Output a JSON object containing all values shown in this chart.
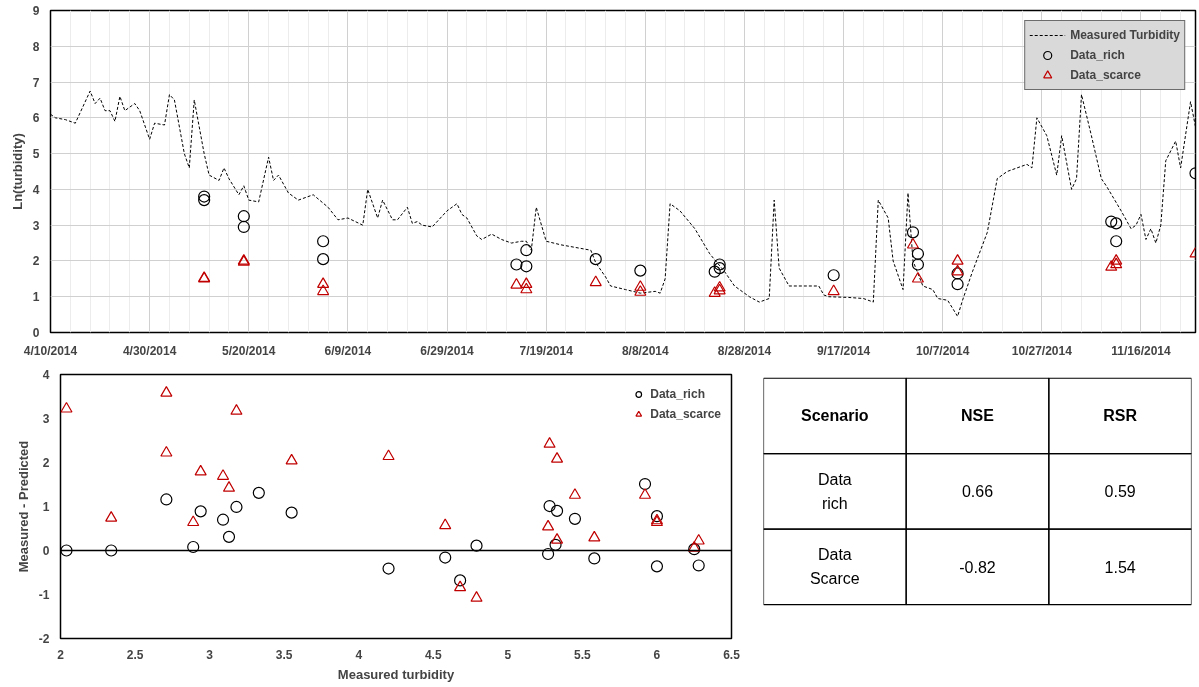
{
  "chart_data": [
    {
      "type": "line",
      "ylabel": "Ln(turbidity)",
      "xlim": [
        "2014-04-10",
        "2014-11-27"
      ],
      "xticks": [
        {
          "value": "2014-04-10",
          "label": "4/10/2014"
        },
        {
          "value": "2014-04-30",
          "label": "4/30/2014"
        },
        {
          "value": "2014-05-20",
          "label": "5/20/2014"
        },
        {
          "value": "2014-06-09",
          "label": "6/9/2014"
        },
        {
          "value": "2014-06-29",
          "label": "6/29/2014"
        },
        {
          "value": "2014-07-19",
          "label": "7/19/2014"
        },
        {
          "value": "2014-08-08",
          "label": "8/8/2014"
        },
        {
          "value": "2014-08-28",
          "label": "8/28/2014"
        },
        {
          "value": "2014-09-17",
          "label": "9/17/2014"
        },
        {
          "value": "2014-10-07",
          "label": "10/7/2014"
        },
        {
          "value": "2014-10-27",
          "label": "10/27/2014"
        },
        {
          "value": "2014-11-16",
          "label": "11/16/2014"
        }
      ],
      "ylim": [
        0,
        9
      ],
      "yticks": [
        0,
        1,
        2,
        3,
        4,
        5,
        6,
        7,
        8,
        9
      ],
      "grid": true,
      "legend": "top right",
      "series": [
        {
          "name": "Measured Turbidity",
          "type": "line",
          "line_style": "dashed",
          "color": "#000000",
          "x": [
            "2014-04-10",
            "2014-04-11",
            "2014-04-13",
            "2014-04-15",
            "2014-04-18",
            "2014-04-19",
            "2014-04-20",
            "2014-04-21",
            "2014-04-22",
            "2014-04-23",
            "2014-04-24",
            "2014-04-25",
            "2014-04-27",
            "2014-04-28",
            "2014-04-30",
            "2014-05-01",
            "2014-05-03",
            "2014-05-04",
            "2014-05-05",
            "2014-05-07",
            "2014-05-08",
            "2014-05-09",
            "2014-05-11",
            "2014-05-12",
            "2014-05-14",
            "2014-05-15",
            "2014-05-16",
            "2014-05-18",
            "2014-05-19",
            "2014-05-20",
            "2014-05-22",
            "2014-05-24",
            "2014-05-25",
            "2014-05-26",
            "2014-05-28",
            "2014-05-30",
            "2014-06-02",
            "2014-06-05",
            "2014-06-07",
            "2014-06-09",
            "2014-06-12",
            "2014-06-13",
            "2014-06-15",
            "2014-06-16",
            "2014-06-18",
            "2014-06-19",
            "2014-06-21",
            "2014-06-22",
            "2014-06-23",
            "2014-06-24",
            "2014-06-26",
            "2014-06-29",
            "2014-07-01",
            "2014-07-02",
            "2014-07-03",
            "2014-07-05",
            "2014-07-06",
            "2014-07-08",
            "2014-07-10",
            "2014-07-12",
            "2014-07-14",
            "2014-07-15",
            "2014-07-16",
            "2014-07-17",
            "2014-07-19",
            "2014-07-22",
            "2014-07-26",
            "2014-07-28",
            "2014-07-29",
            "2014-07-31",
            "2014-08-01",
            "2014-08-04",
            "2014-08-07",
            "2014-08-10",
            "2014-08-11",
            "2014-08-12",
            "2014-08-13",
            "2014-08-15",
            "2014-08-18",
            "2014-08-21",
            "2014-08-24",
            "2014-08-26",
            "2014-08-29",
            "2014-08-31",
            "2014-09-02",
            "2014-09-03",
            "2014-09-04",
            "2014-09-06",
            "2014-09-09",
            "2014-09-12",
            "2014-09-13",
            "2014-09-14",
            "2014-09-18",
            "2014-09-21",
            "2014-09-23",
            "2014-09-24",
            "2014-09-26",
            "2014-09-27",
            "2014-09-29",
            "2014-09-30",
            "2014-10-01",
            "2014-10-03",
            "2014-10-05",
            "2014-10-06",
            "2014-10-08",
            "2014-10-10",
            "2014-10-11",
            "2014-10-13",
            "2014-10-16",
            "2014-10-18",
            "2014-10-20",
            "2014-10-24",
            "2014-10-25",
            "2014-10-26",
            "2014-10-28",
            "2014-10-30",
            "2014-10-31",
            "2014-11-02",
            "2014-11-03",
            "2014-11-04",
            "2014-11-06",
            "2014-11-08",
            "2014-11-09",
            "2014-11-12",
            "2014-11-14",
            "2014-11-15",
            "2014-11-16",
            "2014-11-17",
            "2014-11-18",
            "2014-11-19",
            "2014-11-20",
            "2014-11-21",
            "2014-11-23",
            "2014-11-24",
            "2014-11-26",
            "2014-11-27"
          ],
          "values": [
            6.1,
            6.0,
            5.95,
            5.85,
            6.75,
            6.4,
            6.55,
            6.2,
            6.2,
            5.9,
            6.6,
            6.2,
            6.4,
            6.2,
            5.4,
            5.85,
            5.8,
            6.65,
            6.5,
            5.0,
            4.6,
            6.5,
            5.0,
            4.4,
            4.25,
            4.6,
            4.3,
            3.85,
            4.1,
            3.7,
            3.65,
            4.9,
            4.25,
            4.4,
            3.9,
            3.7,
            3.85,
            3.5,
            3.15,
            3.2,
            3.0,
            4.0,
            3.2,
            3.7,
            3.15,
            3.15,
            3.5,
            3.05,
            3.1,
            3.0,
            2.95,
            3.4,
            3.6,
            3.3,
            3.2,
            2.7,
            2.6,
            2.75,
            2.6,
            2.5,
            2.55,
            2.55,
            2.3,
            3.5,
            2.55,
            2.45,
            2.35,
            2.3,
            1.95,
            1.55,
            1.3,
            1.2,
            1.1,
            1.15,
            1.1,
            1.5,
            3.6,
            3.4,
            2.9,
            2.2,
            1.7,
            1.3,
            1.0,
            0.85,
            0.95,
            3.7,
            1.8,
            1.3,
            1.3,
            1.3,
            1.05,
            1.0,
            0.98,
            0.95,
            0.85,
            3.7,
            3.2,
            2.0,
            1.2,
            3.9,
            2.0,
            1.3,
            1.2,
            0.95,
            0.9,
            0.45,
            0.9,
            1.7,
            2.8,
            4.3,
            4.5,
            4.7,
            4.6,
            6.0,
            5.5,
            4.4,
            5.5,
            4.0,
            4.3,
            6.65,
            5.5,
            4.3,
            4.1,
            3.4,
            2.9,
            3.0,
            3.3,
            2.6,
            2.9,
            2.5,
            3.0,
            4.8,
            5.35,
            4.6,
            6.45,
            5.75
          ]
        },
        {
          "name": "Data_rich",
          "type": "scatter",
          "marker": "circle",
          "color": "#000000",
          "x": [
            "2014-05-11",
            "2014-05-11",
            "2014-05-19",
            "2014-05-19",
            "2014-06-04",
            "2014-06-04",
            "2014-07-13",
            "2014-07-15",
            "2014-07-15",
            "2014-07-29",
            "2014-08-07",
            "2014-08-22",
            "2014-08-23",
            "2014-08-23",
            "2014-09-15",
            "2014-10-01",
            "2014-10-02",
            "2014-10-02",
            "2014-10-10",
            "2014-10-10",
            "2014-11-10",
            "2014-11-11",
            "2014-11-11",
            "2014-11-27"
          ],
          "values": [
            3.8,
            3.7,
            3.25,
            2.95,
            2.55,
            2.05,
            1.9,
            2.3,
            1.85,
            2.05,
            1.73,
            1.7,
            1.9,
            1.8,
            1.6,
            2.8,
            2.2,
            1.9,
            1.65,
            1.35,
            3.1,
            3.05,
            2.55,
            4.45
          ]
        },
        {
          "name": "Data_scarce",
          "type": "scatter",
          "marker": "triangle",
          "color": "#c00000",
          "x": [
            "2014-05-11",
            "2014-05-11",
            "2014-05-19",
            "2014-05-19",
            "2014-06-04",
            "2014-06-04",
            "2014-07-13",
            "2014-07-15",
            "2014-07-15",
            "2014-07-29",
            "2014-08-07",
            "2014-08-07",
            "2014-08-22",
            "2014-08-23",
            "2014-08-23",
            "2014-09-15",
            "2014-10-01",
            "2014-10-02",
            "2014-10-10",
            "2014-10-10",
            "2014-11-10",
            "2014-11-11",
            "2014-11-11",
            "2014-11-27"
          ],
          "values": [
            1.5,
            1.52,
            2.0,
            1.97,
            1.35,
            1.15,
            1.33,
            1.35,
            1.2,
            1.4,
            1.27,
            1.13,
            1.1,
            1.25,
            1.17,
            1.15,
            2.45,
            1.5,
            2.0,
            1.7,
            1.83,
            2.0,
            1.9,
            2.2
          ]
        }
      ]
    },
    {
      "type": "scatter",
      "xlabel": "Measured turbidity",
      "ylabel": "Measured - Predicted",
      "xlim": [
        2,
        6.5
      ],
      "xticks": [
        2,
        2.5,
        3,
        3.5,
        4,
        4.5,
        5,
        5.5,
        6,
        6.5
      ],
      "ylim": [
        -2,
        4
      ],
      "yticks": [
        -2,
        -1,
        0,
        1,
        2,
        3,
        4
      ],
      "legend": "top right",
      "ref_lines": [
        {
          "axis": "y",
          "value": 0,
          "color": "#000000"
        }
      ],
      "series": [
        {
          "name": "Data_rich",
          "marker": "circle",
          "color": "#000000",
          "x": [
            2.04,
            2.34,
            2.71,
            2.89,
            2.94,
            3.09,
            3.13,
            3.18,
            3.33,
            3.55,
            4.2,
            4.58,
            4.68,
            4.79,
            5.27,
            5.28,
            5.33,
            5.32,
            5.45,
            5.58,
            5.92,
            6.0,
            6.0,
            6.25,
            6.28
          ],
          "values": [
            0.0,
            0.0,
            1.16,
            0.08,
            0.89,
            0.7,
            0.31,
            0.99,
            1.31,
            0.86,
            -0.41,
            -0.16,
            -0.68,
            0.11,
            -0.08,
            1.01,
            0.9,
            0.13,
            0.72,
            -0.18,
            1.51,
            0.78,
            -0.36,
            0.03,
            -0.34
          ]
        },
        {
          "name": "Data_scarce",
          "marker": "triangle",
          "color": "#c00000",
          "x": [
            2.04,
            2.34,
            2.71,
            2.71,
            2.89,
            2.94,
            3.09,
            3.13,
            3.18,
            3.55,
            4.2,
            4.58,
            4.68,
            4.79,
            5.27,
            5.28,
            5.33,
            5.33,
            5.45,
            5.58,
            5.92,
            6.0,
            6.0,
            6.25,
            6.28
          ],
          "values": [
            3.22,
            0.74,
            3.58,
            2.22,
            0.64,
            1.79,
            1.69,
            1.42,
            3.17,
            2.04,
            2.14,
            0.57,
            -0.84,
            -1.08,
            0.54,
            2.42,
            2.08,
            0.24,
            1.26,
            0.29,
            1.26,
            0.64,
            0.68,
            0.06,
            0.22
          ]
        }
      ]
    },
    {
      "type": "other",
      "ylabel": "Scenario",
      "categories": [
        "NSE",
        "RSR"
      ],
      "y_categories": [
        "Data rich",
        "Data Scarce"
      ],
      "cell_labels": [
        [
          "0.66",
          "0.59"
        ],
        [
          "-0.82",
          "1.54"
        ]
      ]
    }
  ]
}
